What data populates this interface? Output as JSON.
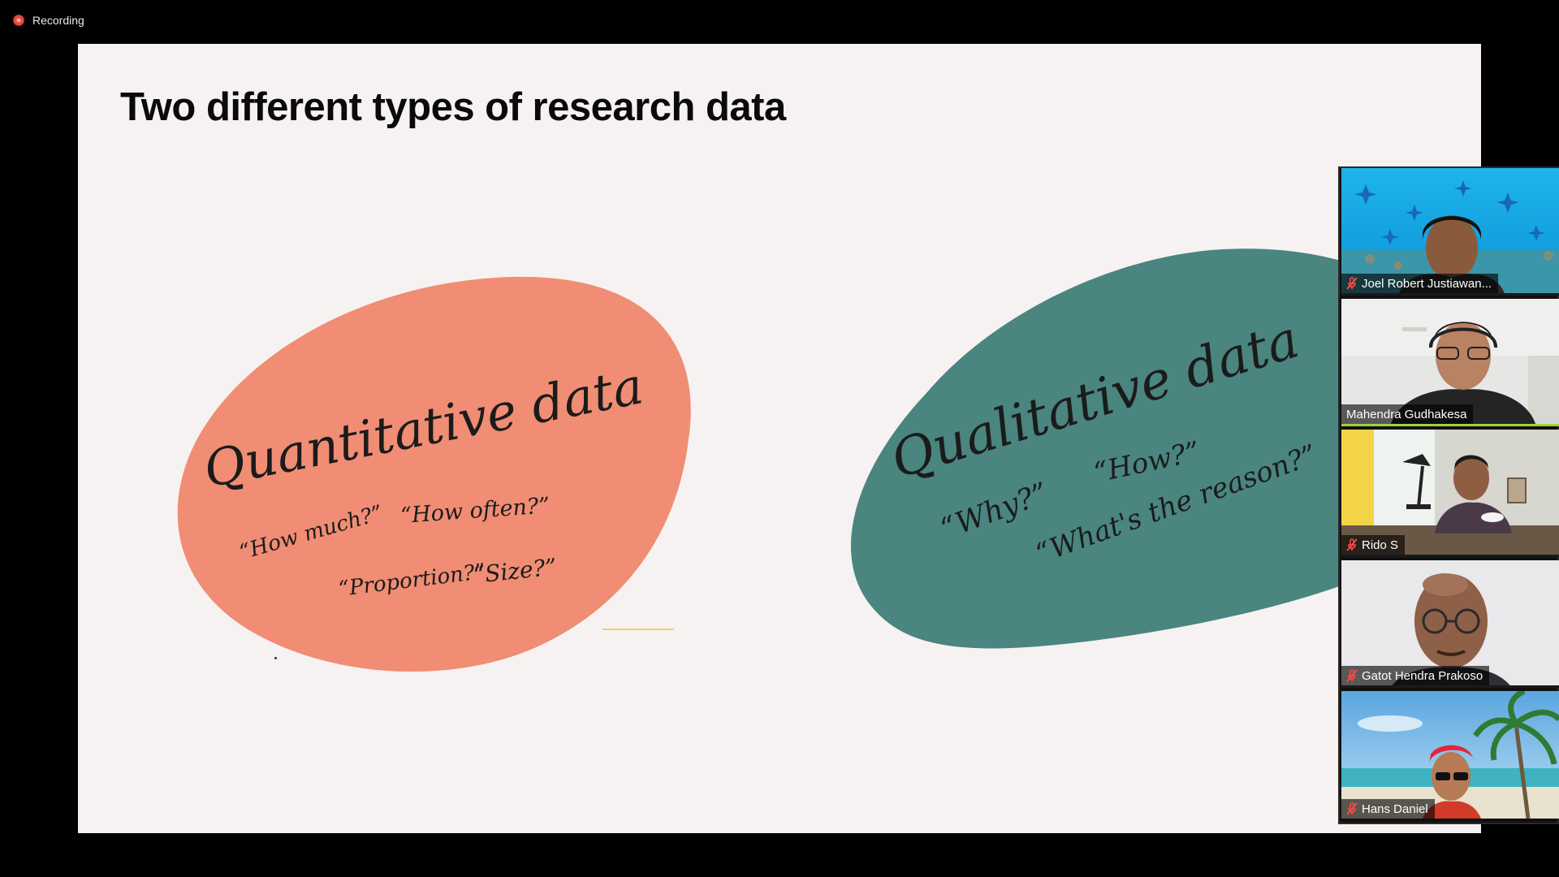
{
  "recording": {
    "label": "Recording"
  },
  "slide": {
    "title": "Two different types of research data",
    "blobs": [
      {
        "name": "quantitative",
        "color": "#f08d74",
        "heading": "Quantitative data",
        "questions": [
          "“How much?”",
          "“How often?”",
          "“Proportion?”",
          "“Size?”"
        ]
      },
      {
        "name": "qualitative",
        "color": "#4a8580",
        "heading": "Qualitative data",
        "questions": [
          "“Why?”",
          "“How?”",
          "“What's the reason?”"
        ]
      }
    ]
  },
  "participants": [
    {
      "name": "Joel Robert Justiawan...",
      "muted": true,
      "active": false,
      "icon": "microphone-off-icon"
    },
    {
      "name": "Mahendra Gudhakesa",
      "muted": false,
      "active": true,
      "icon": ""
    },
    {
      "name": "Rido S",
      "muted": true,
      "active": false,
      "icon": "microphone-off-icon"
    },
    {
      "name": "Gatot Hendra Prakoso",
      "muted": true,
      "active": false,
      "icon": "microphone-off-icon"
    },
    {
      "name": "Hans Daniel",
      "muted": true,
      "active": false,
      "icon": "microphone-off-icon"
    }
  ],
  "colors": {
    "active_speaker_border": "#9fd23a",
    "mute_icon": "#ff4a4a",
    "recording_dot": "#e8473a"
  }
}
